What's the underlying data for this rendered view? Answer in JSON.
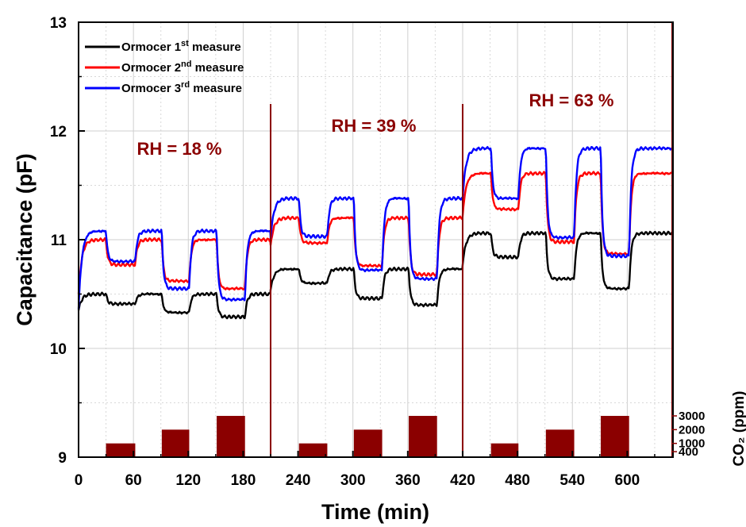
{
  "chart_data": {
    "type": "line",
    "xlabel": "Time (min)",
    "ylabel": "Capacitance (pF)",
    "y2label": "CO₂ (ppm)",
    "xlim": [
      0,
      650
    ],
    "ylim": [
      9,
      13
    ],
    "xticks": [
      0,
      60,
      120,
      180,
      240,
      300,
      360,
      420,
      480,
      540,
      600
    ],
    "yticks": [
      9,
      10,
      11,
      12,
      13
    ],
    "y2ticks": [
      "400",
      "1000",
      "2000",
      "3000"
    ],
    "grid": true,
    "legend_position": "top-left",
    "accent_color": "#8b0000",
    "series": [
      {
        "name": "Ormocer 1st measure",
        "label_base": "Ormocer 1",
        "label_sup": "st",
        "label_tail": " measure",
        "color": "#000000",
        "segments": [
          {
            "t_start": 0,
            "t_end": 210,
            "base": 10.5,
            "levels": [
              10.41,
              10.33,
              10.29
            ],
            "first_value": 10.35
          },
          {
            "t_start": 210,
            "t_end": 420,
            "base": 10.73,
            "levels": [
              10.6,
              10.46,
              10.4
            ],
            "first_value": 10.54
          },
          {
            "t_start": 420,
            "t_end": 650,
            "base": 11.06,
            "levels": [
              10.84,
              10.64,
              10.55
            ],
            "first_value": 10.77
          }
        ]
      },
      {
        "name": "Ormocer 2nd measure",
        "label_base": "Ormocer 2",
        "label_sup": "nd",
        "label_tail": " measure",
        "color": "#ff0000",
        "segments": [
          {
            "t_start": 0,
            "t_end": 210,
            "base": 11.0,
            "levels": [
              10.77,
              10.62,
              10.55
            ],
            "first_value": 10.5
          },
          {
            "t_start": 210,
            "t_end": 420,
            "base": 11.2,
            "levels": [
              10.97,
              10.76,
              10.68
            ],
            "first_value": 10.95
          },
          {
            "t_start": 420,
            "t_end": 650,
            "base": 11.61,
            "levels": [
              11.28,
              10.98,
              10.87
            ],
            "first_value": 11.22
          }
        ]
      },
      {
        "name": "Ormocer 3rd measure",
        "label_base": "Ormocer 3",
        "label_sup": "rd",
        "label_tail": " measure",
        "color": "#0000ff",
        "segments": [
          {
            "t_start": 0,
            "t_end": 210,
            "base": 11.08,
            "levels": [
              10.8,
              10.55,
              10.45
            ],
            "first_value": 10.36
          },
          {
            "t_start": 210,
            "t_end": 420,
            "base": 11.38,
            "levels": [
              11.03,
              10.72,
              10.64
            ],
            "first_value": 11.01
          },
          {
            "t_start": 420,
            "t_end": 650,
            "base": 11.84,
            "levels": [
              11.38,
              11.02,
              10.85
            ],
            "first_value": 11.38
          }
        ]
      }
    ],
    "rh_regions": [
      {
        "label": "RH = 18 %",
        "start": 0,
        "end": 210
      },
      {
        "label": "RH = 39 %",
        "start": 210,
        "end": 420
      },
      {
        "label": "RH = 63 %",
        "start": 420,
        "end": 650
      }
    ],
    "co2_pulses": [
      {
        "start": 30,
        "end": 62,
        "ppm": 1000
      },
      {
        "start": 91,
        "end": 121,
        "ppm": 2000
      },
      {
        "start": 151,
        "end": 182,
        "ppm": 3000
      },
      {
        "start": 241,
        "end": 272,
        "ppm": 1000
      },
      {
        "start": 301,
        "end": 332,
        "ppm": 2000
      },
      {
        "start": 361,
        "end": 392,
        "ppm": 3000
      },
      {
        "start": 451,
        "end": 481,
        "ppm": 1000
      },
      {
        "start": 511,
        "end": 542,
        "ppm": 2000
      },
      {
        "start": 571,
        "end": 602,
        "ppm": 3000
      }
    ]
  }
}
